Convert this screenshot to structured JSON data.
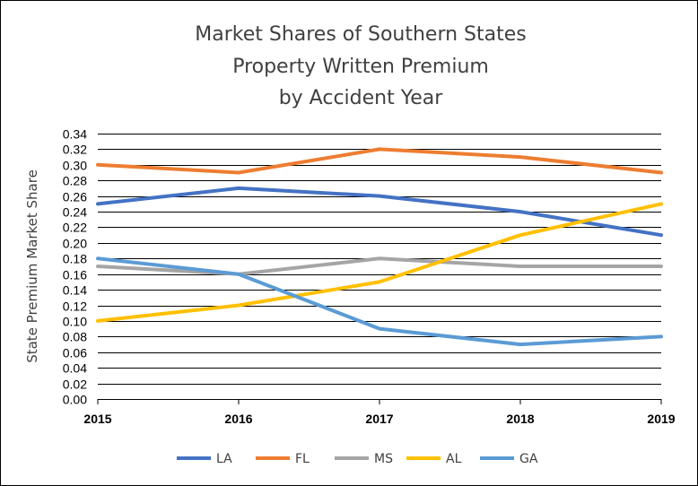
{
  "chart_data": {
    "type": "line",
    "title_lines": [
      "Market Shares of Southern States",
      "Property Written Premium",
      "by Accident Year"
    ],
    "xlabel": "",
    "ylabel": "State Premium Market Share",
    "categories": [
      "2015",
      "2016",
      "2017",
      "2018",
      "2019"
    ],
    "ylim": [
      0,
      0.34
    ],
    "ytick_step": 0.02,
    "grid": true,
    "legend_position": "bottom",
    "series": [
      {
        "name": "LA",
        "color": "#4472C4",
        "values": [
          0.25,
          0.27,
          0.26,
          0.24,
          0.21
        ]
      },
      {
        "name": "FL",
        "color": "#ED7D31",
        "values": [
          0.3,
          0.29,
          0.32,
          0.31,
          0.29
        ]
      },
      {
        "name": "MS",
        "color": "#A5A5A5",
        "values": [
          0.17,
          0.16,
          0.18,
          0.17,
          0.17
        ]
      },
      {
        "name": "AL",
        "color": "#FFC000",
        "values": [
          0.1,
          0.12,
          0.15,
          0.21,
          0.25
        ]
      },
      {
        "name": "GA",
        "color": "#5B9BD5",
        "values": [
          0.18,
          0.16,
          0.09,
          0.07,
          0.08
        ]
      }
    ]
  }
}
